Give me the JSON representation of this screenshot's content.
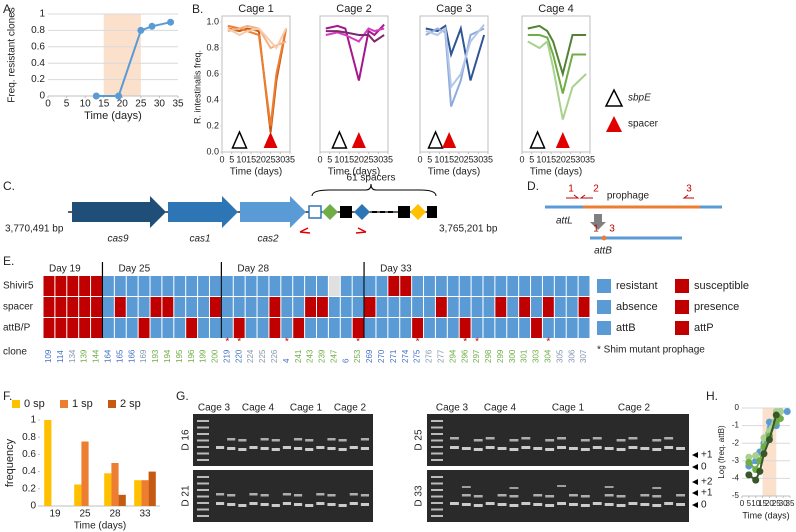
{
  "panel_labels": [
    "A.",
    "B.",
    "C.",
    "D.",
    "E.",
    "F.",
    "G.",
    "H."
  ],
  "chart_data": [
    {
      "type": "line",
      "xlabel": "Time (days)",
      "ylabel": "Freq. resistant clones",
      "x": [
        13,
        19,
        25,
        28,
        33
      ],
      "series": [
        {
          "color": "#5b9bd5",
          "values": [
            0,
            0,
            0.8,
            0.85,
            0.9
          ]
        }
      ],
      "markers": true,
      "highlight": [
        15,
        25
      ],
      "xlim": [
        0,
        35
      ],
      "ylim": [
        0,
        1
      ],
      "xticks": [
        0,
        5,
        10,
        15,
        20,
        25,
        30,
        35
      ],
      "yticks": [
        0,
        0.2,
        0.4,
        0.6,
        0.8,
        1
      ],
      "grid": true
    },
    {
      "type": "line",
      "title": "Cage 1",
      "xlabel": "Time (days)",
      "ylabel": "R. intestinalis freq.",
      "x": [
        3,
        9,
        13,
        19,
        25,
        28,
        33
      ],
      "series": [
        {
          "color": "#c55a11",
          "values": [
            0.95,
            0.93,
            0.95,
            0.93,
            0.15,
            0.55,
            0.95
          ]
        },
        {
          "color": "#ed7d31",
          "values": [
            0.97,
            0.95,
            0.93,
            0.9,
            0.2,
            0.6,
            0.95
          ]
        },
        {
          "color": "#f4b183",
          "values": [
            0.93,
            0.95,
            0.97,
            0.95,
            0.8,
            0.82,
            0.85
          ]
        },
        {
          "color": "#f8cbad",
          "values": [
            0.95,
            0.9,
            0.93,
            0.95,
            0.85,
            0.8,
            0.95
          ]
        }
      ],
      "xlim": [
        0,
        35
      ],
      "ylim": [
        0,
        1
      ],
      "xticks": [
        0,
        5,
        10,
        15,
        20,
        25,
        30,
        35
      ],
      "yticks": [
        {
          "value": 0,
          "label": "0.0"
        },
        0.2,
        0.4,
        0.6,
        0.8,
        {
          "value": 1,
          "label": "1.0"
        }
      ],
      "frame": true,
      "sbpE_day": 9,
      "spacer_day": 25
    },
    {
      "type": "line",
      "title": "Cage 2",
      "xlabel": "Time (days)",
      "x": [
        3,
        9,
        13,
        20,
        25,
        28,
        33
      ],
      "series": [
        {
          "color": "#a5168f",
          "values": [
            0.95,
            0.97,
            0.95,
            0.55,
            0.93,
            0.9,
            0.98
          ]
        },
        {
          "color": "#d63cbf",
          "values": [
            0.9,
            0.92,
            0.9,
            0.85,
            0.95,
            0.93,
            0.95
          ]
        },
        {
          "color": "#7b2a6e",
          "values": [
            0.93,
            0.93,
            0.92,
            0.9,
            0.9,
            0.85,
            0.9
          ]
        }
      ],
      "xlim": [
        0,
        35
      ],
      "ylim": [
        0,
        1
      ],
      "xticks": [
        0,
        5,
        10,
        15,
        20,
        25,
        30,
        35
      ],
      "frame": true,
      "sbpE_day": 10,
      "spacer_day": 20
    },
    {
      "type": "line",
      "title": "Cage 3",
      "xlabel": "Time (days)",
      "x": [
        3,
        9,
        13,
        16,
        21,
        26,
        33
      ],
      "series": [
        {
          "color": "#2e5597",
          "values": [
            0.95,
            0.93,
            0.97,
            0.75,
            0.95,
            0.55,
            0.9
          ]
        },
        {
          "color": "#8faadc",
          "values": [
            0.9,
            0.95,
            0.92,
            0.35,
            0.55,
            0.9,
            0.95
          ]
        },
        {
          "color": "#b4c7e7",
          "values": [
            0.93,
            0.9,
            0.95,
            0.5,
            0.6,
            0.85,
            0.98
          ]
        }
      ],
      "xlim": [
        0,
        35
      ],
      "ylim": [
        0,
        1
      ],
      "xticks": [
        0,
        5,
        10,
        15,
        20,
        25,
        30,
        35
      ],
      "frame": true,
      "sbpE_day": 8,
      "spacer_day": 15
    },
    {
      "type": "line",
      "title": "Cage 4",
      "xlabel": "Time (days)",
      "x": [
        3,
        9,
        13,
        16,
        21,
        26,
        33
      ],
      "series": [
        {
          "color": "#548235",
          "values": [
            0.95,
            0.97,
            0.93,
            0.85,
            0.6,
            0.9,
            0.9
          ]
        },
        {
          "color": "#70ad47",
          "values": [
            0.9,
            0.9,
            0.88,
            0.75,
            0.45,
            0.75,
            0.75
          ]
        },
        {
          "color": "#a9d18e",
          "values": [
            0.85,
            0.8,
            0.85,
            0.65,
            0.25,
            0.5,
            0.6
          ]
        }
      ],
      "xlim": [
        0,
        35
      ],
      "ylim": [
        0,
        1
      ],
      "xticks": [
        0,
        5,
        10,
        15,
        20,
        25,
        30,
        35
      ],
      "frame": true,
      "sbpE_day": 8,
      "spacer_day": 21
    },
    {
      "type": "bar",
      "xlabel": "Time (days)",
      "ylabel": "frequency",
      "categories": [
        "19",
        "25",
        "28",
        "33"
      ],
      "series": [
        {
          "name": "0 sp",
          "color": "#ffc000",
          "values": [
            1,
            0.25,
            0.38,
            0.3
          ]
        },
        {
          "name": "1 sp",
          "color": "#ed7d31",
          "values": [
            0,
            0.75,
            0.5,
            0.3
          ]
        },
        {
          "name": "2 sp",
          "color": "#c55a11",
          "values": [
            0,
            0,
            0.13,
            0.4
          ]
        }
      ],
      "ylim": [
        0,
        1
      ],
      "yticks": [
        0,
        0.2,
        0.4,
        0.6,
        0.8,
        1
      ]
    },
    {
      "type": "line",
      "xlabel": "Time (days)",
      "ylabel": "Log (freq. attB)",
      "x": [
        5,
        10,
        13,
        16,
        20,
        25,
        28,
        33
      ],
      "series": [
        {
          "color": "#5b9bd5",
          "values": [
            -3.3,
            -3,
            -2.5,
            -2,
            -0.8,
            -1,
            -0.2,
            -0.2
          ]
        },
        {
          "color": "#a9d18e",
          "values": [
            -2.8,
            -2.7,
            -3,
            -1.7,
            -1.3,
            -0.2,
            -0.2,
            null
          ]
        },
        {
          "color": "#70ad47",
          "values": [
            -3.1,
            -3.5,
            -3,
            -2.2,
            -1.6,
            -0.8,
            -0.6,
            null
          ]
        },
        {
          "color": "#38562a",
          "values": [
            -3.8,
            -4.1,
            -3.6,
            -2.6,
            -1.8,
            -0.4,
            null,
            null
          ]
        }
      ],
      "markers": true,
      "highlight": [
        15,
        25
      ],
      "xlim": [
        0,
        35
      ],
      "ylim": [
        -5,
        0
      ],
      "xticks": [
        0,
        5,
        10,
        15,
        20,
        25,
        30,
        35
      ],
      "yticks": [
        -5,
        -4,
        -3,
        -2,
        -1,
        0
      ],
      "grid": true
    }
  ],
  "panel_b_legend": [
    "sbpE",
    "spacer"
  ],
  "panel_c": {
    "spacers": "61 spacers",
    "left_coord": "3,770,491 bp",
    "right_coord": "3,765,201 bp",
    "genes": [
      "cas9",
      "cas1",
      "cas2"
    ]
  },
  "panel_d": {
    "top_primers": [
      "1",
      "2",
      "3"
    ],
    "prophage": "prophage",
    "attL": "attL",
    "bottom_primers": [
      "1",
      "3"
    ],
    "attB": "attB"
  },
  "panel_e": {
    "row_labels": [
      "Shivir5",
      "spacer",
      "attB/P"
    ],
    "clone_label": "clone",
    "colors": [
      "#5b9bd5",
      "#c00000"
    ],
    "legend": [
      [
        "resistant",
        "susceptible"
      ],
      [
        "absence",
        "presence"
      ],
      [
        "attB",
        "attP"
      ]
    ],
    "note": "* Shim mutant prophage",
    "groups": [
      {
        "day": "Day 19",
        "clones": [
          "109",
          "114",
          "134",
          "139",
          "144"
        ],
        "clone_colors": [
          "#4472c4",
          "#4472c4",
          "#8497b0",
          "#70ad47",
          "#70ad47"
        ],
        "rows": [
          [
            1,
            1,
            1,
            1,
            1
          ],
          [
            1,
            1,
            1,
            1,
            1
          ],
          [
            1,
            1,
            1,
            1,
            1
          ]
        ],
        "stars": [
          null,
          null,
          null,
          null,
          null
        ]
      },
      {
        "day": "Day 25",
        "clones": [
          "164",
          "165",
          "166",
          "169",
          "193",
          "194",
          "195",
          "196",
          "199",
          "200"
        ],
        "clone_colors": [
          "#4472c4",
          "#4472c4",
          "#4472c4",
          "#8497b0",
          "#70ad47",
          "#70ad47",
          "#70ad47",
          "#70ad47",
          "#70ad47",
          "#70ad47"
        ],
        "rows": [
          [
            0,
            0,
            0,
            0,
            0,
            0,
            0,
            0,
            0,
            0
          ],
          [
            0,
            1,
            0,
            0,
            1,
            1,
            0,
            0,
            0,
            1
          ],
          [
            0,
            0,
            0,
            1,
            0,
            0,
            0,
            1,
            0,
            0
          ]
        ],
        "stars": [
          null,
          null,
          null,
          null,
          null,
          null,
          null,
          null,
          null,
          null
        ]
      },
      {
        "day": "Day 28",
        "clones": [
          "219",
          "220",
          "224",
          "225",
          "226",
          "4",
          "241",
          "243",
          "239",
          "247",
          "6",
          "253"
        ],
        "clone_colors": [
          "#4472c4",
          "#4472c4",
          "#8497b0",
          "#8497b0",
          "#8497b0",
          "#4472c4",
          "#70ad47",
          "#70ad47",
          "#70ad47",
          "#70ad47",
          "#4472c4",
          "#70ad47"
        ],
        "rows": [
          [
            0,
            0,
            0,
            0,
            0,
            0,
            0,
            0,
            0,
            null,
            0,
            0
          ],
          [
            0,
            0,
            0,
            0,
            1,
            0,
            0,
            1,
            1,
            0,
            0,
            0
          ],
          [
            0,
            1,
            0,
            0,
            1,
            0,
            1,
            0,
            0,
            0,
            0,
            1
          ]
        ],
        "stars": [
          "*",
          "*",
          null,
          null,
          null,
          "*",
          null,
          null,
          null,
          null,
          null,
          "*"
        ]
      },
      {
        "day": "Day 33",
        "clones": [
          "269",
          "270",
          "271",
          "274",
          "275",
          "276",
          "277",
          "294",
          "296",
          "297",
          "298",
          "299",
          "300",
          "301",
          "303",
          "304",
          "305",
          "306",
          "307"
        ],
        "clone_colors": [
          "#4472c4",
          "#4472c4",
          "#4472c4",
          "#4472c4",
          "#4472c4",
          "#8497b0",
          "#8497b0",
          "#70ad47",
          "#70ad47",
          "#70ad47",
          "#70ad47",
          "#70ad47",
          "#70ad47",
          "#70ad47",
          "#70ad47",
          "#70ad47",
          "#8497b0",
          "#8497b0",
          "#8497b0"
        ],
        "rows": [
          [
            0,
            0,
            1,
            1,
            0,
            0,
            0,
            0,
            0,
            0,
            0,
            0,
            0,
            0,
            0,
            0,
            0,
            0,
            0
          ],
          [
            1,
            0,
            0,
            0,
            0,
            0,
            1,
            0,
            0,
            0,
            0,
            1,
            0,
            1,
            0,
            1,
            0,
            0,
            1
          ],
          [
            0,
            0,
            0,
            0,
            1,
            0,
            0,
            0,
            1,
            0,
            0,
            0,
            0,
            0,
            1,
            0,
            0,
            0,
            0
          ]
        ],
        "stars": [
          null,
          null,
          null,
          null,
          "*",
          null,
          null,
          null,
          "*",
          "*",
          null,
          null,
          null,
          null,
          null,
          "*",
          null,
          null,
          null
        ]
      }
    ]
  },
  "panel_g": {
    "left": {
      "cages": [
        "Cage 3",
        "Cage 4",
        "Cage 1",
        "Cage 2"
      ],
      "days": [
        "D 16",
        "D 21"
      ]
    },
    "right": {
      "cages": [
        "Cage 3",
        "Cage 4",
        "Cage 1",
        "Cage 2"
      ],
      "days": [
        "D 25",
        "D 33"
      ],
      "bands": [
        [
          "+1",
          "0"
        ],
        [
          "+2",
          "+1",
          "0"
        ]
      ]
    }
  }
}
